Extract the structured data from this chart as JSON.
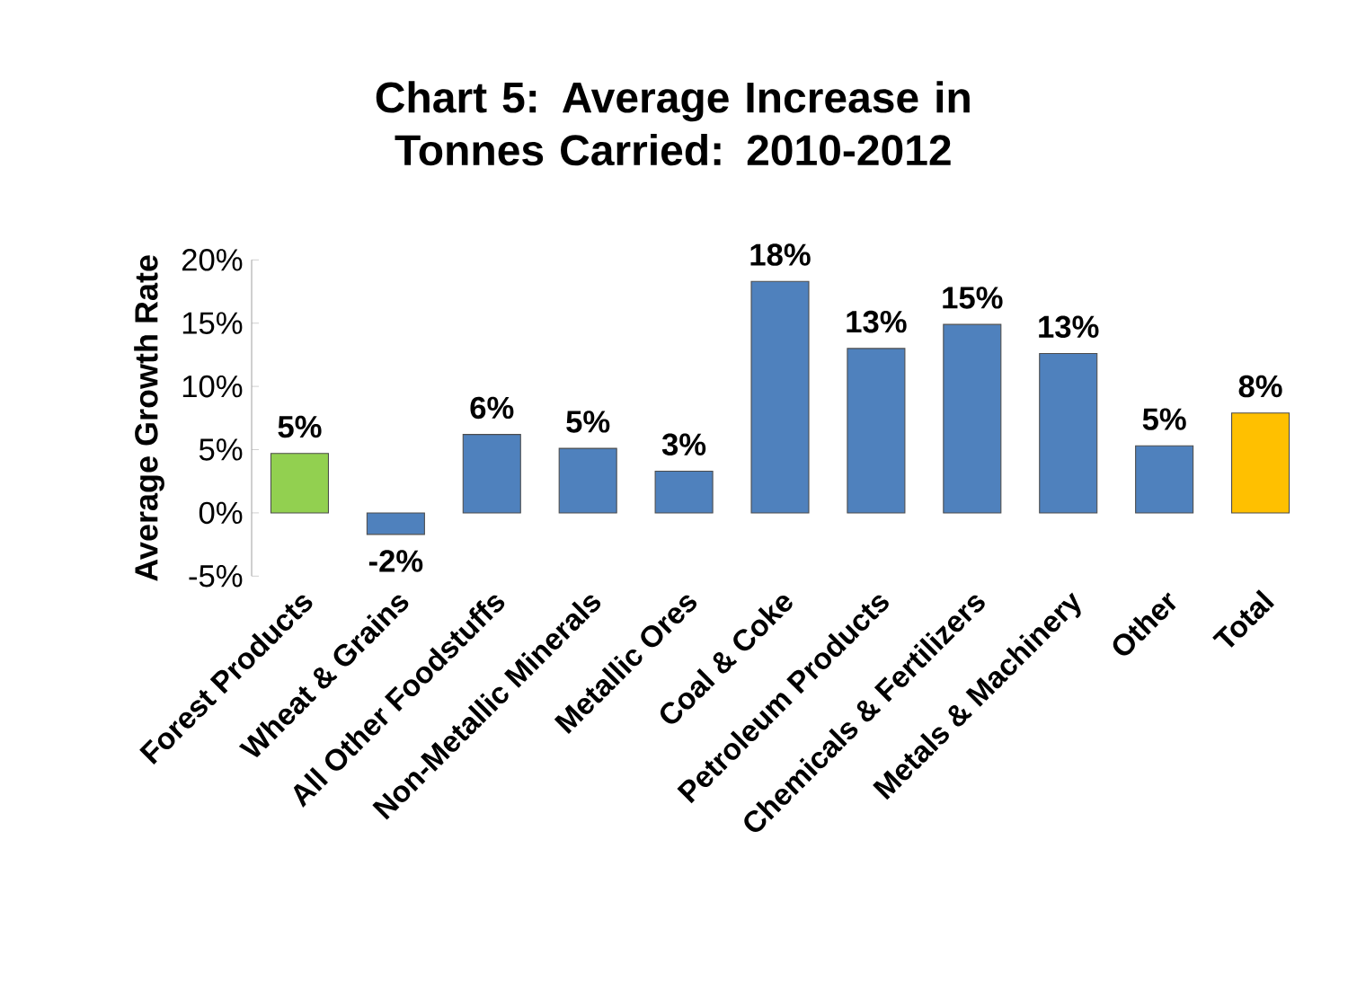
{
  "chart_data": {
    "type": "bar",
    "title": "Chart 5: Average Increase in Tonnes Carried: 2010-2012",
    "ylabel": "Average Growth Rate",
    "categories": [
      "Forest Products",
      "Wheat & Grains",
      "All Other Foodstuffs",
      "Non-Metallic Minerals",
      "Metallic Ores",
      "Coal & Coke",
      "Petroleum Products",
      "Chemicals & Fertilizers",
      "Metals & Machinery",
      "Other",
      "Total"
    ],
    "values": [
      4.7,
      -1.7,
      6.2,
      5.1,
      3.3,
      18.3,
      13.0,
      14.9,
      12.6,
      5.3,
      7.9
    ],
    "value_labels": [
      "5%",
      "-2%",
      "6%",
      "5%",
      "3%",
      "18%",
      "13%",
      "15%",
      "13%",
      "5%",
      "8%"
    ],
    "colors": [
      "#92d050",
      "#4f81bd",
      "#4f81bd",
      "#4f81bd",
      "#4f81bd",
      "#4f81bd",
      "#4f81bd",
      "#4f81bd",
      "#4f81bd",
      "#4f81bd",
      "#ffc000"
    ],
    "ylim": [
      -5,
      20
    ],
    "yticks": [
      {
        "value": -5,
        "label": "-5%"
      },
      {
        "value": 0,
        "label": "0%"
      },
      {
        "value": 5,
        "label": "5%"
      },
      {
        "value": 10,
        "label": "10%"
      },
      {
        "value": 15,
        "label": "15%"
      },
      {
        "value": 20,
        "label": "20%"
      }
    ]
  }
}
